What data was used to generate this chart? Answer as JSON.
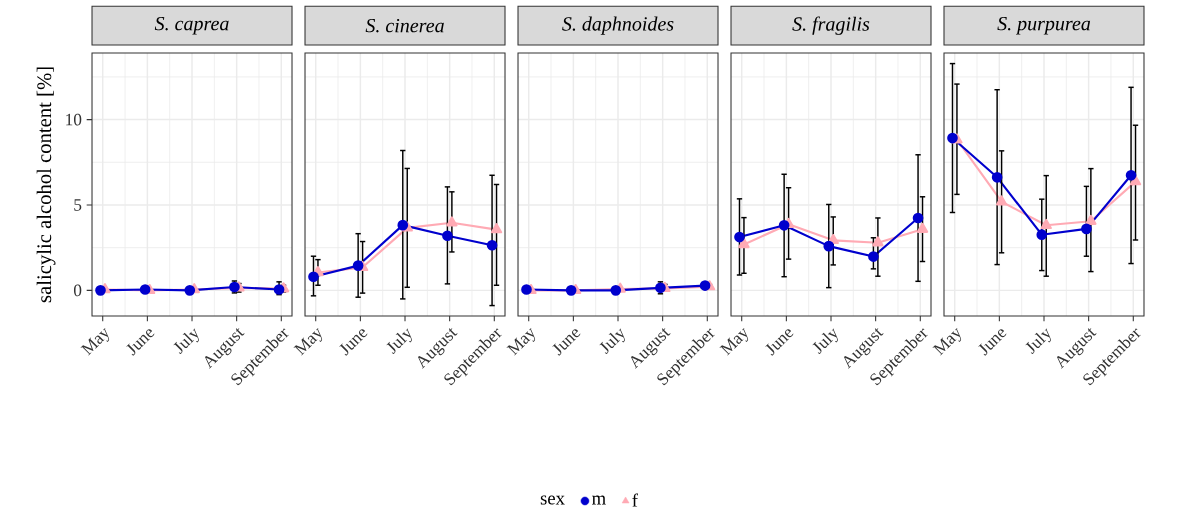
{
  "chart_data": [
    {
      "type": "line",
      "title": "S. caprea",
      "ylabel": "salicylic alcohol content [%]",
      "legend_title": "sex",
      "legend": "bottom",
      "grid": true,
      "line_style": "solid",
      "categories": [
        "May",
        "June",
        "July",
        "August",
        "September"
      ],
      "ylim": [
        -1.5,
        13.9
      ],
      "yticks": [
        0,
        5,
        10
      ],
      "series": [
        {
          "name": "m",
          "color": "#0000cd",
          "marker": "circle",
          "values": [
            0.0,
            0.05,
            0.0,
            0.2,
            0.05
          ],
          "errors": [
            null,
            null,
            null,
            [
              -0.15,
              0.55
            ],
            [
              -0.25,
              0.5
            ]
          ]
        },
        {
          "name": "f",
          "color": "#ffaab4",
          "marker": "triangle",
          "values": [
            0.05,
            0.0,
            0.05,
            0.15,
            0.1
          ],
          "errors": [
            null,
            null,
            null,
            [
              -0.1,
              0.4
            ],
            [
              -0.1,
              0.3
            ]
          ]
        }
      ]
    },
    {
      "type": "line",
      "title": "S. cinerea",
      "grid": true,
      "line_style": "solid",
      "tick_labels": "x",
      "categories": [
        "May",
        "June",
        "July",
        "August",
        "September"
      ],
      "ylim": [
        -1.5,
        13.9
      ],
      "yticks": [
        0,
        5,
        10
      ],
      "series": [
        {
          "color": "#0000cd",
          "marker": "circle",
          "values": [
            0.8,
            1.45,
            3.82,
            3.2,
            2.64
          ],
          "errors": [
            [
              -0.32,
              2.0
            ],
            [
              -0.4,
              3.32
            ],
            [
              -0.5,
              8.19
            ],
            [
              0.38,
              6.06
            ],
            [
              -0.89,
              6.74
            ]
          ]
        },
        {
          "color": "#ffaab4",
          "marker": "triangle",
          "values": [
            1.05,
            1.35,
            3.66,
            3.96,
            3.56
          ],
          "errors": [
            [
              0.3,
              1.8
            ],
            [
              -0.16,
              2.86
            ],
            [
              0.18,
              7.14
            ],
            [
              2.25,
              5.77
            ],
            [
              0.3,
              6.2
            ]
          ]
        }
      ]
    },
    {
      "type": "line",
      "title": "S. daphnoides",
      "grid": true,
      "line_style": "solid",
      "tick_labels": "x",
      "categories": [
        "May",
        "June",
        "July",
        "August",
        "September"
      ],
      "ylim": [
        -1.5,
        13.9
      ],
      "yticks": [
        0,
        5,
        10
      ],
      "series": [
        {
          "color": "#0000cd",
          "marker": "circle",
          "values": [
            0.05,
            0.0,
            0.0,
            0.15,
            0.28
          ],
          "errors": [
            null,
            [
              -0.05,
              0.05
            ],
            null,
            [
              -0.2,
              0.5
            ],
            null
          ]
        },
        {
          "color": "#ffaab4",
          "marker": "triangle",
          "values": [
            0.0,
            0.0,
            0.08,
            0.12,
            0.22
          ],
          "errors": [
            [
              -0.05,
              0.1
            ],
            [
              -0.05,
              0.05
            ],
            null,
            [
              0.0,
              0.35
            ],
            [
              0.15,
              0.35
            ]
          ]
        }
      ]
    },
    {
      "type": "line",
      "title": "S. fragilis",
      "grid": true,
      "line_style": "solid",
      "tick_labels": "x",
      "categories": [
        "May",
        "June",
        "July",
        "August",
        "September"
      ],
      "ylim": [
        -1.5,
        13.9
      ],
      "yticks": [
        0,
        5,
        10
      ],
      "series": [
        {
          "color": "#0000cd",
          "marker": "circle",
          "values": [
            3.12,
            3.81,
            2.59,
            1.98,
            4.24
          ],
          "errors": [
            [
              0.9,
              5.36
            ],
            [
              0.8,
              6.8
            ],
            [
              0.16,
              5.03
            ],
            [
              1.26,
              3.08
            ],
            [
              0.53,
              7.94
            ]
          ]
        },
        {
          "color": "#ffaab4",
          "marker": "triangle",
          "values": [
            2.69,
            3.87,
            2.93,
            2.79,
            3.58
          ],
          "errors": [
            [
              1.0,
              4.26
            ],
            [
              1.83,
              6.01
            ],
            [
              1.49,
              4.3
            ],
            [
              0.83,
              4.24
            ],
            [
              1.69,
              5.48
            ]
          ]
        }
      ]
    },
    {
      "type": "line",
      "title": "S. purpurea",
      "grid": true,
      "line_style": "solid",
      "tick_labels": "x",
      "categories": [
        "May",
        "June",
        "July",
        "August",
        "September"
      ],
      "ylim": [
        -1.5,
        13.9
      ],
      "yticks": [
        0,
        5,
        10
      ],
      "series": [
        {
          "color": "#0000cd",
          "marker": "circle",
          "values": [
            8.92,
            6.62,
            3.26,
            3.6,
            6.74
          ],
          "errors": [
            [
              4.56,
              13.28
            ],
            [
              1.51,
              11.75
            ],
            [
              1.16,
              5.34
            ],
            [
              2.0,
              6.09
            ],
            [
              1.57,
              11.89
            ]
          ]
        },
        {
          "color": "#ffaab4",
          "marker": "triangle",
          "values": [
            8.82,
            5.19,
            3.81,
            4.05,
            6.37
          ],
          "errors": [
            [
              5.62,
              12.08
            ],
            [
              2.2,
              8.17
            ],
            [
              0.83,
              6.72
            ],
            [
              1.1,
              7.13
            ],
            [
              2.95,
              9.67
            ]
          ]
        }
      ]
    }
  ]
}
